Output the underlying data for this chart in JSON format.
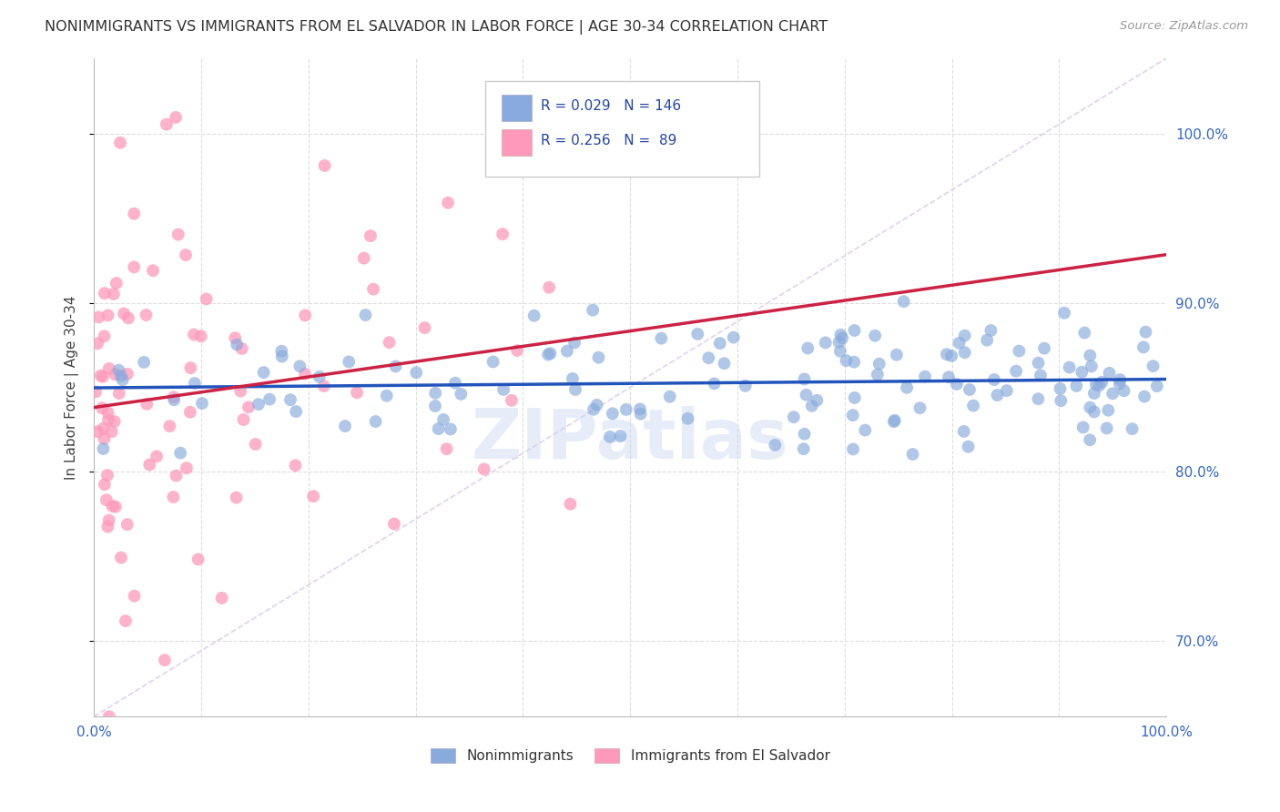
{
  "title": "NONIMMIGRANTS VS IMMIGRANTS FROM EL SALVADOR IN LABOR FORCE | AGE 30-34 CORRELATION CHART",
  "source": "Source: ZipAtlas.com",
  "ylabel": "In Labor Force | Age 30-34",
  "legend_label1": "Nonimmigrants",
  "legend_label2": "Immigrants from El Salvador",
  "R1": 0.029,
  "N1": 146,
  "R2": 0.256,
  "N2": 89,
  "color_blue": "#88AADD",
  "color_pink": "#FF99BB",
  "color_blue_line": "#2255BB",
  "color_pink_line": "#CC2244",
  "color_diag": "#DDCCEE",
  "background": "#FFFFFF",
  "grid_color": "#DDDDDD",
  "xlim": [
    0.0,
    1.0
  ],
  "ylim": [
    0.655,
    1.045
  ],
  "yticks": [
    0.7,
    0.8,
    0.9,
    1.0
  ],
  "ytick_labels": [
    "70.0%",
    "80.0%",
    "90.0%",
    "100.0%"
  ]
}
